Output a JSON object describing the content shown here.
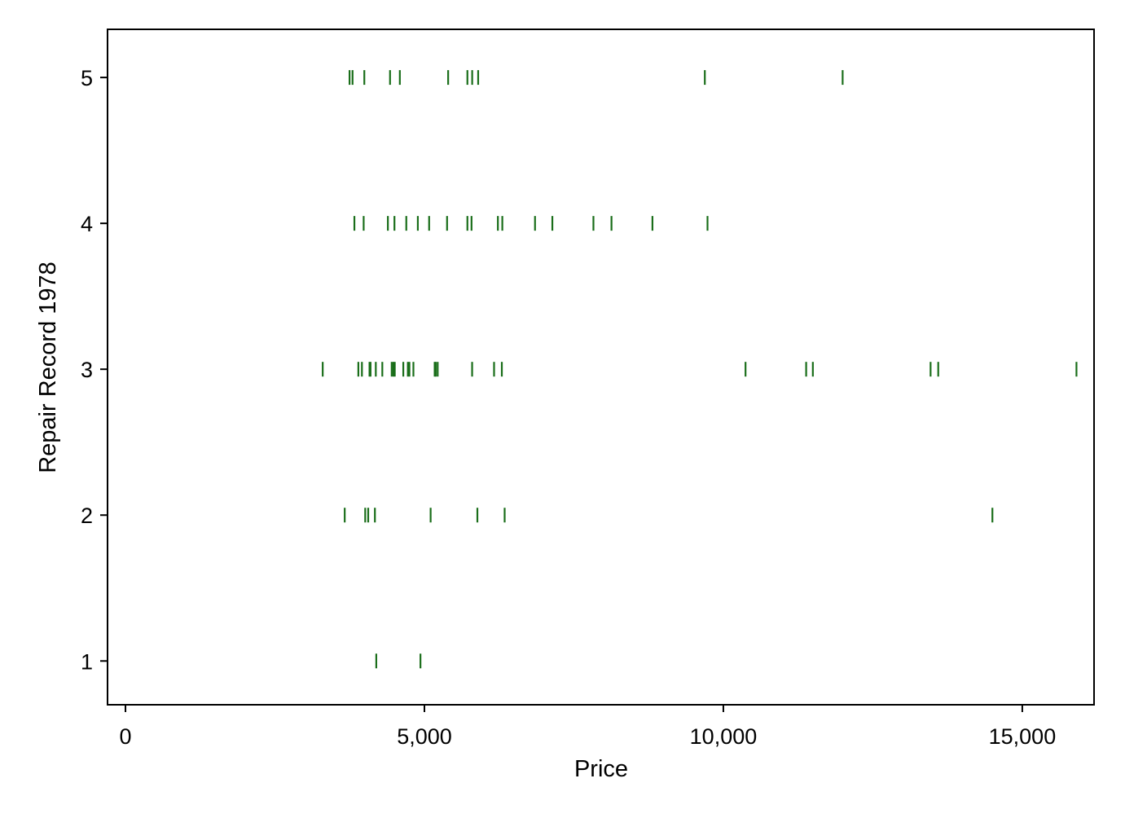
{
  "chart_data": {
    "type": "scatter",
    "marker": "vertical-tick",
    "title": "",
    "xlabel": "Price",
    "ylabel": "Repair Record 1978",
    "xlim": [
      -300,
      16200
    ],
    "ylim": [
      0.7,
      5.33
    ],
    "xticks": [
      0,
      5000,
      10000,
      15000
    ],
    "xtick_labels": [
      "0",
      "5,000",
      "10,000",
      "15,000"
    ],
    "yticks": [
      1,
      2,
      3,
      4,
      5
    ],
    "ytick_labels": [
      "1",
      "2",
      "3",
      "4",
      "5"
    ],
    "grid": false,
    "legend": "none",
    "marker_color": "#1a6e1a",
    "series": [
      {
        "points": [
          {
            "y": 1,
            "x": [
              4195,
              4934
            ]
          },
          {
            "y": 2,
            "x": [
              3667,
              4010,
              4060,
              4172,
              5104,
              5886,
              6342,
              14500
            ]
          },
          {
            "y": 3,
            "x": [
              3299,
              3895,
              3955,
              4082,
              4099,
              4187,
              4296,
              4453,
              4482,
              4504,
              4647,
              4723,
              4749,
              4816,
              5172,
              5189,
              5222,
              5798,
              6165,
              6295,
              10371,
              11385,
              11497,
              13466,
              13594,
              15906
            ]
          },
          {
            "y": 4,
            "x": [
              3829,
              3984,
              4389,
              4499,
              4697,
              4890,
              5079,
              5379,
              5719,
              5788,
              6229,
              6303,
              6850,
              7140,
              7827,
              8129,
              8814,
              9735
            ]
          },
          {
            "y": 5,
            "x": [
              3748,
              3798,
              3995,
              4425,
              4589,
              5397,
              5719,
              5799,
              5899,
              9690,
              11995
            ]
          }
        ]
      }
    ]
  }
}
